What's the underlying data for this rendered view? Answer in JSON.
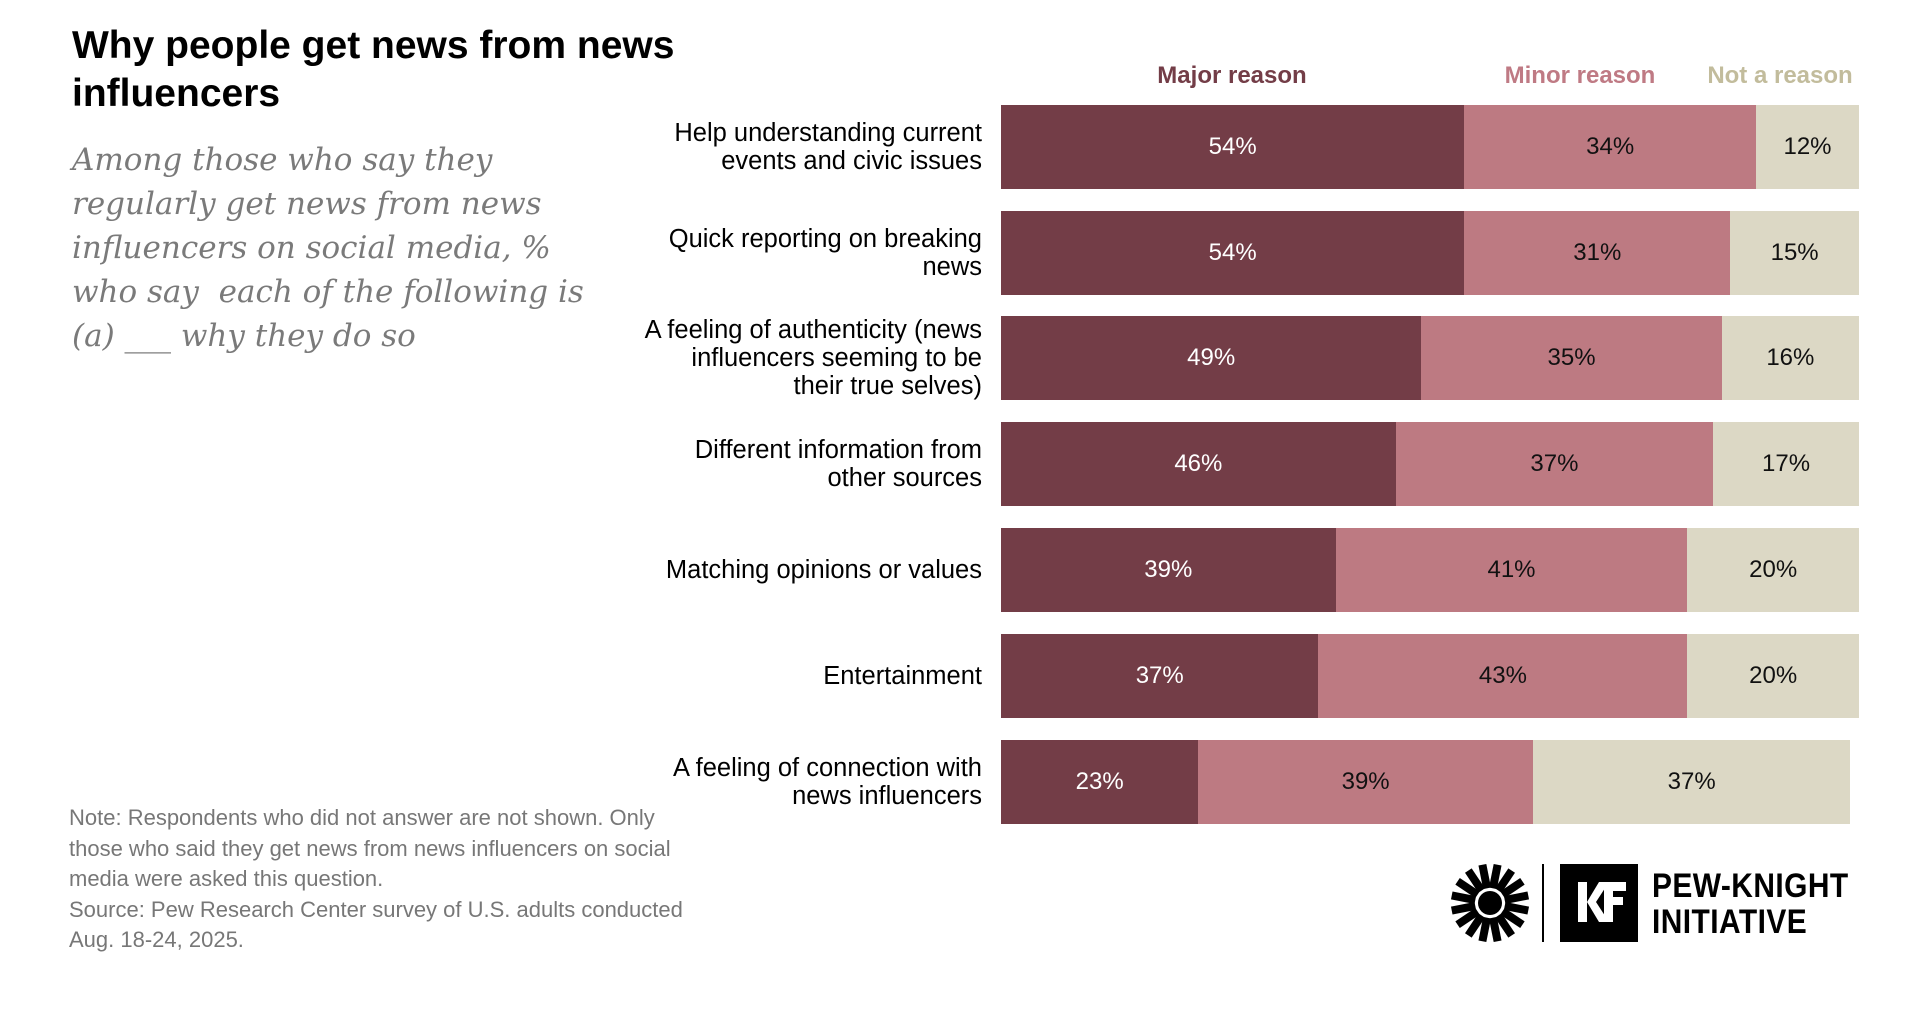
{
  "title": "Why people get news from news influencers",
  "subtitle": "Among those who say they regularly get news from news influencers on social media, % who say  each of the following is (a) ___ why they do so",
  "note": "Note: Respondents who did not answer are not shown. Only those who said they get news from news influencers on social media were asked this question.",
  "source": "Source: Pew Research Center survey of U.S. adults conducted Aug. 18-24, 2025.",
  "brand": {
    "line1": "PEW-KNIGHT",
    "line2": "INITIATIVE",
    "mark": "KF"
  },
  "chart_data": {
    "type": "bar",
    "orientation": "horizontal",
    "stacked": true,
    "categories": [
      "Help understanding current events and civic issues",
      "Quick reporting on breaking news",
      "A feeling of authenticity (news influencers seeming to be their true selves)",
      "Different information from other sources",
      "Matching opinions or values",
      "Entertainment",
      "A feeling of connection with news influencers"
    ],
    "series": [
      {
        "name": "Major reason",
        "color": "#733d47",
        "label_color": "#733d47",
        "text_color": "#ffffff",
        "values": [
          54,
          54,
          49,
          46,
          39,
          37,
          23
        ]
      },
      {
        "name": "Minor reason",
        "color": "#bd7a82",
        "label_color": "#bf7a84",
        "text_color": "#111111",
        "values": [
          34,
          31,
          35,
          37,
          41,
          43,
          39
        ]
      },
      {
        "name": "Not a reason",
        "color": "#dcd8c5",
        "label_color": "#c2bc9c",
        "text_color": "#111111",
        "values": [
          12,
          15,
          16,
          17,
          20,
          20,
          37
        ]
      }
    ],
    "unit": "%",
    "xlim": [
      0,
      100
    ],
    "grid": false,
    "legend": "top"
  }
}
